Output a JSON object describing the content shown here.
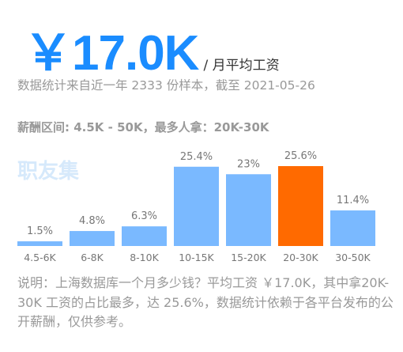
{
  "header": {
    "salary": "￥17.0K",
    "unit": "/ 月平均工资",
    "sample_text": "数据统计来自近一年 2333 份样本，截至 2021-05-26",
    "range_text": "薪酬区间: 4.5K - 50K，最多人拿：20K-30K"
  },
  "watermark": "职友集",
  "note": "说明：上海数据库一个月多少钱？平均工资 ￥17.0K，其中拿20K-30K 工资的占比最多，达 25.6%，数据统计依赖于各平台发布的公开薪酬，仅供参考。",
  "colors": {
    "accent": "#1a8cff",
    "bar": "#7ab9ff",
    "highlight": "#ff6a00",
    "muted": "#999999"
  },
  "chart_data": {
    "type": "bar",
    "categories": [
      "4.5-6K",
      "6-8K",
      "8-10K",
      "10-15K",
      "15-20K",
      "20-30K",
      "30-50K"
    ],
    "values": [
      1.5,
      4.8,
      6.3,
      25.4,
      23,
      25.6,
      11.4
    ],
    "value_labels": [
      "1.5%",
      "4.8%",
      "6.3%",
      "25.4%",
      "23%",
      "25.6%",
      "11.4%"
    ],
    "highlight_index": 5,
    "unit": "%",
    "ylim": [
      0,
      25.6
    ],
    "grid": false,
    "title": "",
    "xlabel": "",
    "ylabel": ""
  }
}
